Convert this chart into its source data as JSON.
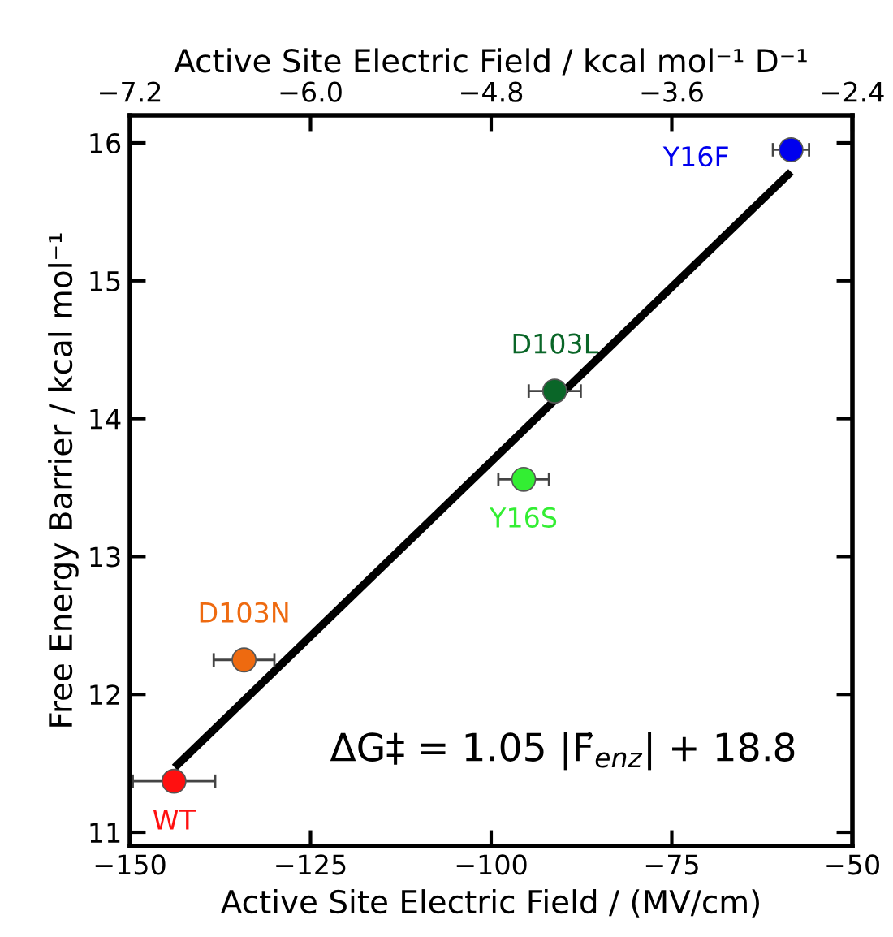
{
  "chart_data": {
    "type": "scatter",
    "xlabel": "Active Site Electric Field / (MV/cm)",
    "ylabel": "Free Energy Barrier / kcal mol⁻¹",
    "x2label": "Active Site Electric Field / kcal mol⁻¹ D⁻¹",
    "xlim": [
      -150,
      -50
    ],
    "ylim": [
      10.9,
      16.2
    ],
    "x2lim": [
      -7.2,
      -2.4
    ],
    "xticks": [
      {
        "value": -150,
        "label": "−150"
      },
      {
        "value": -125,
        "label": "−125"
      },
      {
        "value": -100,
        "label": "−100"
      },
      {
        "value": -75,
        "label": "−75"
      },
      {
        "value": -50,
        "label": "−50"
      }
    ],
    "yticks": [
      11,
      12,
      13,
      14,
      15,
      16
    ],
    "x2ticks": [
      {
        "value": -7.2,
        "label": "−7.2"
      },
      {
        "value": -6.0,
        "label": "−6.0"
      },
      {
        "value": -4.8,
        "label": "−4.8"
      },
      {
        "value": -3.6,
        "label": "−3.6"
      },
      {
        "value": -2.4,
        "label": "−2.4"
      }
    ],
    "grid": false,
    "legend": false,
    "series": [
      {
        "type": "scatter",
        "marker": "circle",
        "x": [
          -143.9,
          -134.2,
          -95.5,
          -91.2,
          -58.5
        ],
        "values": [
          11.37,
          12.25,
          13.56,
          14.2,
          15.95
        ],
        "colors": [
          "#ff1010",
          "#ee6a10",
          "#33ee33",
          "#0a6628",
          "#0000ee"
        ],
        "xerrors": [
          5.7,
          4.2,
          3.5,
          3.6,
          2.5
        ]
      },
      {
        "type": "line",
        "x": [
          -143.8,
          -58.5
        ],
        "values": [
          11.47,
          15.79
        ],
        "color": "#000000"
      }
    ],
    "annotations": [
      {
        "text": "WT",
        "x": -143.9,
        "y": 11.37
      },
      {
        "text": "D103N",
        "x": -134.2,
        "y": 12.25
      },
      {
        "text": "Y16S",
        "x": -95.5,
        "y": 13.56
      },
      {
        "text": "D103L",
        "x": -91.2,
        "y": 14.2
      },
      {
        "text": "Y16F",
        "x": -58.5,
        "y": 15.95
      },
      "ΔG‡ = 1.05 |F⃗$_{enz}$| + 18.8"
    ]
  }
}
